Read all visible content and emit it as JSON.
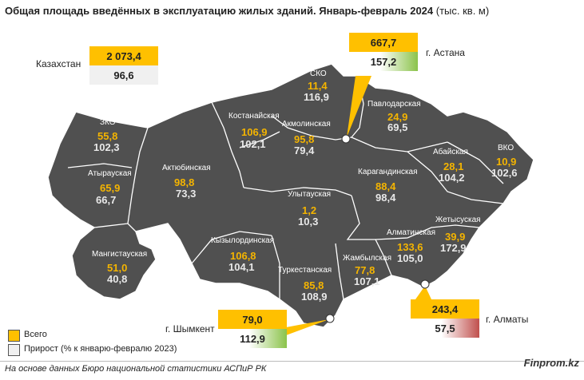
{
  "title": {
    "bold": "Общая площадь введённых в эксплуатацию жилых зданий. Январь-февраль 2024",
    "unit": "(тыс. кв. м)"
  },
  "colors": {
    "map_fill": "#505050",
    "total": "#ffc000",
    "growth_up": "#8bc34a",
    "growth_down": "#c0504d"
  },
  "kazakhstan": {
    "label": "Казахстан",
    "total": "2 073,4",
    "growth": "96,6"
  },
  "astana": {
    "label": "г. Астана",
    "total": "667,7",
    "growth": "157,2"
  },
  "almaty": {
    "label": "г. Алматы",
    "total": "243,4",
    "growth": "57,5"
  },
  "shymkent": {
    "label": "г. Шымкент",
    "total": "79,0",
    "growth": "112,9"
  },
  "regions": [
    {
      "name": "СКО",
      "total": "11,4",
      "growth": "116,9"
    },
    {
      "name": "Павлодарская",
      "total": "24,9",
      "growth": "69,5"
    },
    {
      "name": "Костанайская",
      "total": "106,9",
      "growth": "102,1"
    },
    {
      "name": "Акмолинская",
      "total": "95,8",
      "growth": "79,4"
    },
    {
      "name": "ЗКО",
      "total": "55,8",
      "growth": "102,3"
    },
    {
      "name": "Атырауская",
      "total": "65,9",
      "growth": "66,7"
    },
    {
      "name": "Актюбинская",
      "total": "98,8",
      "growth": "73,3"
    },
    {
      "name": "Абайская",
      "total": "28,1",
      "growth": "104,2"
    },
    {
      "name": "ВКО",
      "total": "10,9",
      "growth": "102,6"
    },
    {
      "name": "Карагандинская",
      "total": "88,4",
      "growth": "98,4"
    },
    {
      "name": "Улытауская",
      "total": "1,2",
      "growth": "10,3"
    },
    {
      "name": "Жетысуская",
      "total": "39,9",
      "growth": "172,9"
    },
    {
      "name": "Алматинская",
      "total": "133,6",
      "growth": "105,0"
    },
    {
      "name": "Кызылординская",
      "total": "106,8",
      "growth": "104,1"
    },
    {
      "name": "Мангистауская",
      "total": "51,0",
      "growth": "40,8"
    },
    {
      "name": "Жамбылская",
      "total": "77,8",
      "growth": "107,1"
    },
    {
      "name": "Туркестанская",
      "total": "85,8",
      "growth": "108,9"
    }
  ],
  "legend": {
    "total": "Всего",
    "growth": "Прирост (% к январю-февралю 2023)"
  },
  "source": "На основе данных Бюро национальной статистики АСПиР РК",
  "brand": "Finprom.kz"
}
